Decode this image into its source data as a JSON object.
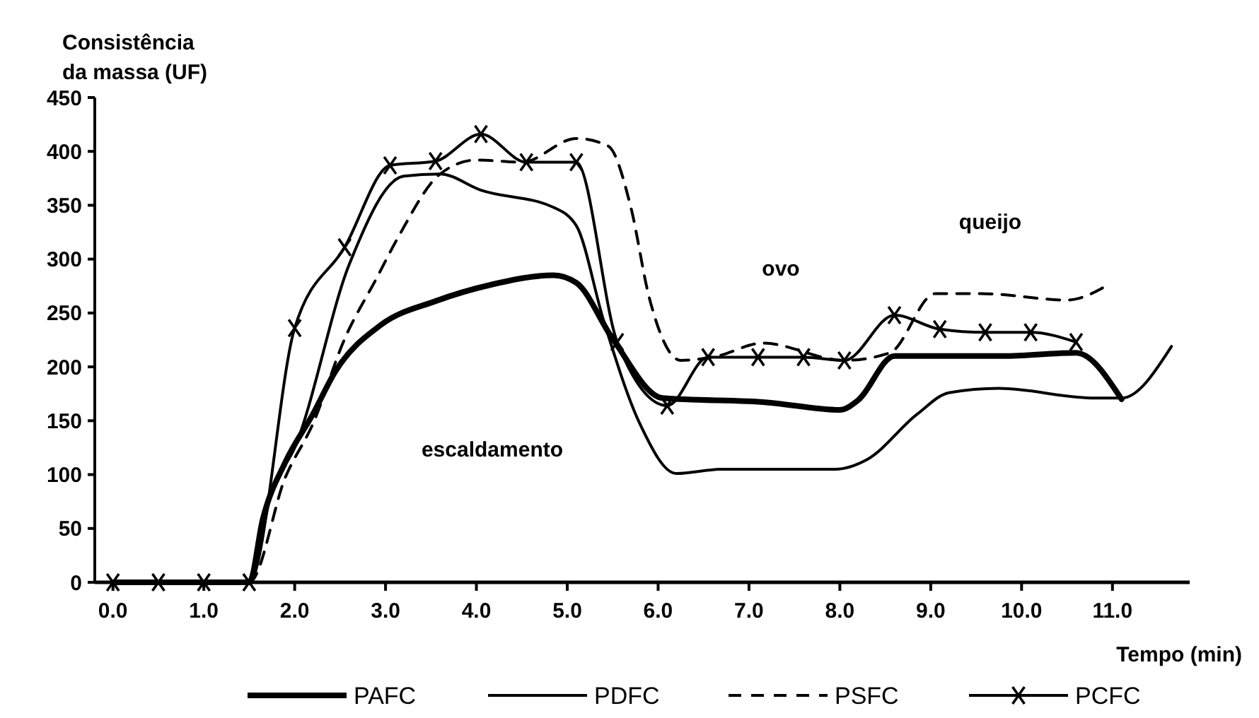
{
  "chart_data": {
    "type": "line",
    "ylabel": "Consistência da massa (UF)",
    "xlabel": "Tempo (min)",
    "xlim": [
      -0.2,
      11.85
    ],
    "xticks": [
      {
        "value": 0,
        "label": "0.0"
      },
      {
        "value": 1,
        "label": "1.0"
      },
      {
        "value": 2,
        "label": "2.0"
      },
      {
        "value": 3,
        "label": "3.0"
      },
      {
        "value": 4,
        "label": "4.0"
      },
      {
        "value": 5,
        "label": "5.0"
      },
      {
        "value": 6,
        "label": "6.0"
      },
      {
        "value": 7,
        "label": "7.0"
      },
      {
        "value": 8,
        "label": "8.0"
      },
      {
        "value": 9,
        "label": "9.0"
      },
      {
        "value": 10,
        "label": "10.0"
      },
      {
        "value": 11,
        "label": "11.0"
      }
    ],
    "ylim": [
      0,
      450
    ],
    "yticks": [
      0,
      50,
      100,
      150,
      200,
      250,
      300,
      350,
      400,
      450
    ],
    "grid": false,
    "legend": "bottom",
    "series": [
      {
        "name": "PAFC",
        "color": "#000000",
        "line_style": "solid",
        "marker": "none",
        "x": [
          0,
          0.5,
          1,
          1.5,
          1.65,
          1.9,
          2.2,
          2.45,
          2.95,
          3.55,
          4.15,
          4.85,
          5.1,
          5.5,
          6.05,
          7.2,
          8.0,
          8.2,
          8.6,
          9.8,
          10.6,
          11.1
        ],
        "values": [
          0,
          0,
          0,
          0,
          59,
          112,
          156,
          196,
          239,
          261,
          276,
          285,
          278,
          226,
          171,
          167,
          160,
          169,
          210,
          210,
          213,
          170
        ]
      },
      {
        "name": "PDFC",
        "color": "#000000",
        "line_style": "solid",
        "marker": "none",
        "x": [
          0,
          0.5,
          1,
          1.5,
          1.75,
          2.0,
          2.6,
          3.2,
          3.6,
          4.05,
          4.85,
          5.1,
          5.4,
          5.8,
          6.2,
          6.7,
          7.95,
          8.3,
          8.85,
          9.2,
          9.75,
          10.8,
          11.1,
          11.65
        ],
        "values": [
          0,
          0,
          0,
          0,
          85,
          125,
          295,
          377,
          379,
          364,
          348,
          331,
          243,
          147,
          101,
          105,
          105,
          114,
          156,
          176,
          180,
          171,
          171,
          219
        ]
      },
      {
        "name": "PSFC",
        "color": "#000000",
        "line_style": "dashed",
        "marker": "none",
        "x": [
          0,
          0.5,
          1,
          1.5,
          1.9,
          2.2,
          2.55,
          2.9,
          3.15,
          3.6,
          4.0,
          4.5,
          5.1,
          5.45,
          5.7,
          5.9,
          6.25,
          6.65,
          7.15,
          8.05,
          8.55,
          9.05,
          9.55,
          10.5,
          10.95
        ],
        "values": [
          0,
          0,
          0,
          0,
          98,
          147,
          226,
          282,
          322,
          379,
          392,
          390,
          412,
          405,
          348,
          265,
          206,
          210,
          222,
          206,
          213,
          268,
          268,
          262,
          276
        ]
      },
      {
        "name": "PCFC",
        "color": "#000000",
        "line_style": "solid",
        "marker": "cross",
        "x": [
          0,
          0.5,
          1,
          1.5,
          2,
          2.55,
          3.05,
          3.55,
          4.05,
          4.55,
          5.1,
          5.55,
          6.1,
          6.55,
          7.1,
          7.6,
          8.05,
          8.6,
          9.1,
          9.6,
          10.1,
          10.6
        ],
        "values": [
          0,
          0,
          0,
          0,
          236,
          311,
          387,
          391,
          416,
          390,
          390,
          223,
          164,
          209,
          209,
          209,
          206,
          248,
          235,
          232,
          232,
          223
        ]
      }
    ],
    "annotations": [
      "escaldamento",
      "ovo",
      "queijo"
    ]
  }
}
